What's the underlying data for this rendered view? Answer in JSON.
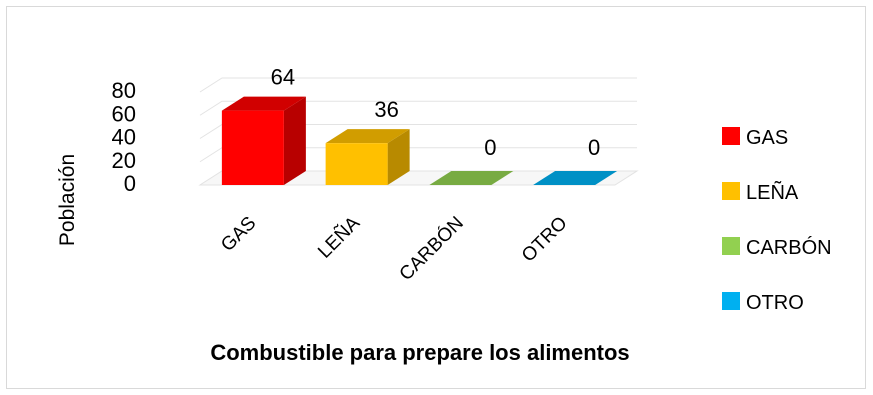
{
  "chart_data": {
    "type": "bar",
    "title": "Combustible para prepare los alimentos",
    "xlabel": "",
    "ylabel": "Población",
    "ylim": [
      0,
      80
    ],
    "yticks": [
      "0",
      "20",
      "40",
      "60",
      "80"
    ],
    "categories": [
      "GAS",
      "LEÑA",
      "CARBÓN",
      "OTRO"
    ],
    "values": [
      64,
      36,
      0,
      0
    ],
    "data_labels": [
      "64",
      "36",
      "0",
      "0"
    ],
    "legend": {
      "position": "right",
      "items": [
        {
          "label": "GAS",
          "color": "#ff0000"
        },
        {
          "label": "LEÑA",
          "color": "#ffc000"
        },
        {
          "label": "CARBÓN",
          "color": "#92d050"
        },
        {
          "label": "OTRO",
          "color": "#00b0f0"
        }
      ]
    },
    "grid": true,
    "style": "3d-column"
  }
}
